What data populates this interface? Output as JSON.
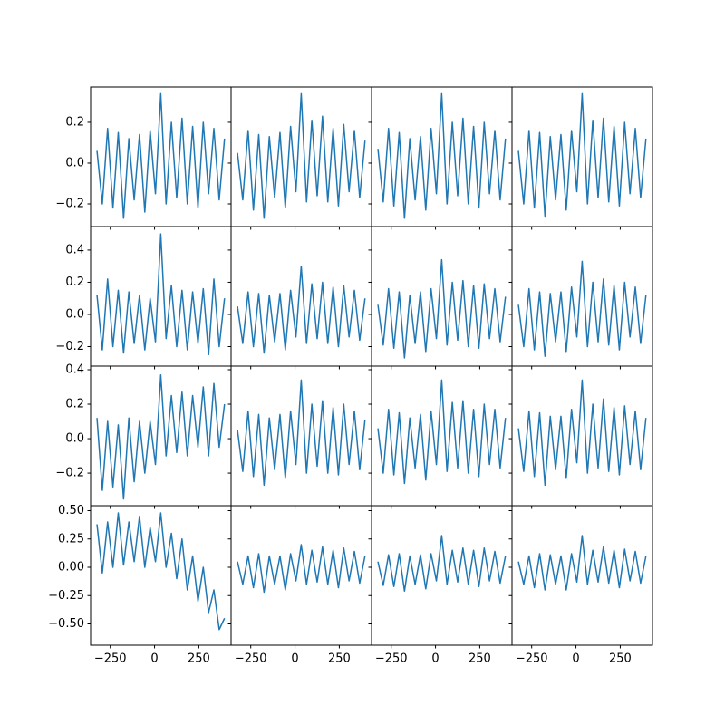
{
  "chart_data": [
    {
      "type": "line",
      "x": [
        -325,
        -295,
        -265,
        -235,
        -205,
        -175,
        -145,
        -115,
        -85,
        -55,
        -25,
        5,
        35,
        65,
        95,
        125,
        155,
        185,
        215,
        245,
        275,
        305,
        335,
        365,
        395
      ],
      "values": [
        0.06,
        -0.2,
        0.17,
        -0.22,
        0.15,
        -0.27,
        0.12,
        -0.18,
        0.14,
        -0.24,
        0.16,
        -0.15,
        0.34,
        -0.2,
        0.2,
        -0.17,
        0.22,
        -0.2,
        0.18,
        -0.22,
        0.2,
        -0.15,
        0.17,
        -0.18,
        0.12
      ],
      "color": "#1f77b4",
      "xlim": [
        -361,
        432
      ],
      "ylim": [
        -0.311,
        0.373
      ],
      "xticks": [
        -250,
        0,
        250
      ],
      "yticks": [
        {
          "value": -0.2,
          "label": "−0.2"
        },
        {
          "value": 0,
          "label": "0.0"
        },
        0.2
      ],
      "xtick_labels": false,
      "ytick_labels": true
    },
    {
      "type": "line",
      "x": [
        -325,
        -295,
        -265,
        -235,
        -205,
        -175,
        -145,
        -115,
        -85,
        -55,
        -25,
        5,
        35,
        65,
        95,
        125,
        155,
        185,
        215,
        245,
        275,
        305,
        335,
        365,
        395
      ],
      "values": [
        0.05,
        -0.18,
        0.16,
        -0.23,
        0.14,
        -0.27,
        0.13,
        -0.17,
        0.15,
        -0.22,
        0.18,
        -0.14,
        0.34,
        -0.19,
        0.21,
        -0.16,
        0.23,
        -0.19,
        0.17,
        -0.21,
        0.19,
        -0.14,
        0.16,
        -0.17,
        0.11
      ],
      "color": "#1f77b4",
      "xlim": [
        -361,
        432
      ],
      "ylim": [
        -0.311,
        0.373
      ],
      "xticks": [
        -250,
        0,
        250
      ],
      "yticks": [
        -0.2,
        0,
        0.2
      ],
      "xtick_labels": false,
      "ytick_labels": false
    },
    {
      "type": "line",
      "x": [
        -325,
        -295,
        -265,
        -235,
        -205,
        -175,
        -145,
        -115,
        -85,
        -55,
        -25,
        5,
        35,
        65,
        95,
        125,
        155,
        185,
        215,
        245,
        275,
        305,
        335,
        365,
        395
      ],
      "values": [
        0.07,
        -0.19,
        0.17,
        -0.21,
        0.15,
        -0.27,
        0.12,
        -0.18,
        0.13,
        -0.23,
        0.17,
        -0.15,
        0.34,
        -0.2,
        0.2,
        -0.16,
        0.22,
        -0.2,
        0.18,
        -0.22,
        0.2,
        -0.15,
        0.16,
        -0.18,
        0.12
      ],
      "color": "#1f77b4",
      "xlim": [
        -361,
        432
      ],
      "ylim": [
        -0.311,
        0.373
      ],
      "xticks": [
        -250,
        0,
        250
      ],
      "yticks": [
        -0.2,
        0,
        0.2
      ],
      "xtick_labels": false,
      "ytick_labels": false
    },
    {
      "type": "line",
      "x": [
        -325,
        -295,
        -265,
        -235,
        -205,
        -175,
        -145,
        -115,
        -85,
        -55,
        -25,
        5,
        35,
        65,
        95,
        125,
        155,
        185,
        215,
        245,
        275,
        305,
        335,
        365,
        395
      ],
      "values": [
        0.06,
        -0.2,
        0.16,
        -0.22,
        0.15,
        -0.26,
        0.13,
        -0.18,
        0.14,
        -0.23,
        0.16,
        -0.14,
        0.34,
        -0.2,
        0.21,
        -0.17,
        0.22,
        -0.19,
        0.18,
        -0.21,
        0.2,
        -0.15,
        0.17,
        -0.17,
        0.12
      ],
      "color": "#1f77b4",
      "xlim": [
        -361,
        432
      ],
      "ylim": [
        -0.311,
        0.373
      ],
      "xticks": [
        -250,
        0,
        250
      ],
      "yticks": [
        -0.2,
        0,
        0.2
      ],
      "xtick_labels": false,
      "ytick_labels": false
    },
    {
      "type": "line",
      "x": [
        -325,
        -295,
        -265,
        -235,
        -205,
        -175,
        -145,
        -115,
        -85,
        -55,
        -25,
        5,
        35,
        65,
        95,
        125,
        155,
        185,
        215,
        245,
        275,
        305,
        335,
        365,
        395
      ],
      "values": [
        0.12,
        -0.22,
        0.22,
        -0.2,
        0.15,
        -0.24,
        0.14,
        -0.18,
        0.12,
        -0.22,
        0.1,
        -0.17,
        0.5,
        -0.15,
        0.18,
        -0.2,
        0.15,
        -0.22,
        0.14,
        -0.18,
        0.16,
        -0.25,
        0.22,
        -0.2,
        0.1
      ],
      "color": "#1f77b4",
      "xlim": [
        -361,
        432
      ],
      "ylim": [
        -0.321,
        0.546
      ],
      "xticks": [
        -250,
        0,
        250
      ],
      "yticks": [
        {
          "value": -0.2,
          "label": "−0.2"
        },
        {
          "value": 0,
          "label": "0.0"
        },
        0.2,
        0.4
      ],
      "xtick_labels": false,
      "ytick_labels": true
    },
    {
      "type": "line",
      "x": [
        -325,
        -295,
        -265,
        -235,
        -205,
        -175,
        -145,
        -115,
        -85,
        -55,
        -25,
        5,
        35,
        65,
        95,
        125,
        155,
        185,
        215,
        245,
        275,
        305,
        335,
        365,
        395
      ],
      "values": [
        0.05,
        -0.18,
        0.14,
        -0.2,
        0.13,
        -0.24,
        0.12,
        -0.17,
        0.13,
        -0.22,
        0.15,
        -0.14,
        0.3,
        -0.18,
        0.19,
        -0.15,
        0.2,
        -0.18,
        0.17,
        -0.2,
        0.18,
        -0.14,
        0.15,
        -0.16,
        0.1
      ],
      "color": "#1f77b4",
      "xlim": [
        -361,
        432
      ],
      "ylim": [
        -0.321,
        0.546
      ],
      "xticks": [
        -250,
        0,
        250
      ],
      "yticks": [
        -0.2,
        0,
        0.2,
        0.4
      ],
      "xtick_labels": false,
      "ytick_labels": false
    },
    {
      "type": "line",
      "x": [
        -325,
        -295,
        -265,
        -235,
        -205,
        -175,
        -145,
        -115,
        -85,
        -55,
        -25,
        5,
        35,
        65,
        95,
        125,
        155,
        185,
        215,
        245,
        275,
        305,
        335,
        365,
        395
      ],
      "values": [
        0.06,
        -0.19,
        0.16,
        -0.21,
        0.14,
        -0.27,
        0.12,
        -0.18,
        0.14,
        -0.23,
        0.16,
        -0.15,
        0.34,
        -0.19,
        0.2,
        -0.16,
        0.21,
        -0.2,
        0.18,
        -0.21,
        0.19,
        -0.15,
        0.16,
        -0.17,
        0.11
      ],
      "color": "#1f77b4",
      "xlim": [
        -361,
        432
      ],
      "ylim": [
        -0.321,
        0.546
      ],
      "xticks": [
        -250,
        0,
        250
      ],
      "yticks": [
        -0.2,
        0,
        0.2,
        0.4
      ],
      "xtick_labels": false,
      "ytick_labels": false
    },
    {
      "type": "line",
      "x": [
        -325,
        -295,
        -265,
        -235,
        -205,
        -175,
        -145,
        -115,
        -85,
        -55,
        -25,
        5,
        35,
        65,
        95,
        125,
        155,
        185,
        215,
        245,
        275,
        305,
        335,
        365,
        395
      ],
      "values": [
        0.06,
        -0.2,
        0.16,
        -0.22,
        0.14,
        -0.26,
        0.13,
        -0.17,
        0.14,
        -0.23,
        0.17,
        -0.14,
        0.33,
        -0.2,
        0.2,
        -0.17,
        0.22,
        -0.19,
        0.18,
        -0.22,
        0.2,
        -0.14,
        0.17,
        -0.18,
        0.12
      ],
      "color": "#1f77b4",
      "xlim": [
        -361,
        432
      ],
      "ylim": [
        -0.321,
        0.546
      ],
      "xticks": [
        -250,
        0,
        250
      ],
      "yticks": [
        -0.2,
        0,
        0.2,
        0.4
      ],
      "xtick_labels": false,
      "ytick_labels": false
    },
    {
      "type": "line",
      "x": [
        -325,
        -295,
        -265,
        -235,
        -205,
        -175,
        -145,
        -115,
        -85,
        -55,
        -25,
        5,
        35,
        65,
        95,
        125,
        155,
        185,
        215,
        245,
        275,
        305,
        335,
        365,
        395
      ],
      "values": [
        0.12,
        -0.3,
        0.1,
        -0.28,
        0.08,
        -0.35,
        0.12,
        -0.25,
        0.1,
        -0.2,
        0.1,
        -0.15,
        0.37,
        -0.1,
        0.25,
        -0.08,
        0.27,
        -0.1,
        0.25,
        -0.05,
        0.3,
        -0.1,
        0.32,
        -0.05,
        0.2
      ],
      "color": "#1f77b4",
      "xlim": [
        -361,
        432
      ],
      "ylim": [
        -0.389,
        0.421
      ],
      "xticks": [
        -250,
        0,
        250
      ],
      "yticks": [
        {
          "value": -0.2,
          "label": "−0.2"
        },
        {
          "value": 0,
          "label": "0.0"
        },
        0.2,
        0.4
      ],
      "xtick_labels": false,
      "ytick_labels": true
    },
    {
      "type": "line",
      "x": [
        -325,
        -295,
        -265,
        -235,
        -205,
        -175,
        -145,
        -115,
        -85,
        -55,
        -25,
        5,
        35,
        65,
        95,
        125,
        155,
        185,
        215,
        245,
        275,
        305,
        335,
        365,
        395
      ],
      "values": [
        0.05,
        -0.19,
        0.16,
        -0.22,
        0.14,
        -0.27,
        0.12,
        -0.18,
        0.14,
        -0.23,
        0.16,
        -0.15,
        0.34,
        -0.2,
        0.2,
        -0.16,
        0.22,
        -0.2,
        0.18,
        -0.21,
        0.2,
        -0.15,
        0.16,
        -0.18,
        0.11
      ],
      "color": "#1f77b4",
      "xlim": [
        -361,
        432
      ],
      "ylim": [
        -0.389,
        0.421
      ],
      "xticks": [
        -250,
        0,
        250
      ],
      "yticks": [
        -0.2,
        0,
        0.2,
        0.4
      ],
      "xtick_labels": false,
      "ytick_labels": false
    },
    {
      "type": "line",
      "x": [
        -325,
        -295,
        -265,
        -235,
        -205,
        -175,
        -145,
        -115,
        -85,
        -55,
        -25,
        5,
        35,
        65,
        95,
        125,
        155,
        185,
        215,
        245,
        275,
        305,
        335,
        365,
        395
      ],
      "values": [
        0.06,
        -0.2,
        0.17,
        -0.21,
        0.15,
        -0.26,
        0.12,
        -0.17,
        0.14,
        -0.24,
        0.16,
        -0.15,
        0.34,
        -0.19,
        0.21,
        -0.17,
        0.22,
        -0.2,
        0.17,
        -0.22,
        0.2,
        -0.15,
        0.17,
        -0.17,
        0.12
      ],
      "color": "#1f77b4",
      "xlim": [
        -361,
        432
      ],
      "ylim": [
        -0.389,
        0.421
      ],
      "xticks": [
        -250,
        0,
        250
      ],
      "yticks": [
        -0.2,
        0,
        0.2,
        0.4
      ],
      "xtick_labels": false,
      "ytick_labels": false
    },
    {
      "type": "line",
      "x": [
        -325,
        -295,
        -265,
        -235,
        -205,
        -175,
        -145,
        -115,
        -85,
        -55,
        -25,
        5,
        35,
        65,
        95,
        125,
        155,
        185,
        215,
        245,
        275,
        305,
        335,
        365,
        395
      ],
      "values": [
        0.06,
        -0.19,
        0.16,
        -0.22,
        0.15,
        -0.27,
        0.13,
        -0.18,
        0.13,
        -0.23,
        0.17,
        -0.14,
        0.34,
        -0.2,
        0.2,
        -0.17,
        0.23,
        -0.19,
        0.18,
        -0.21,
        0.19,
        -0.15,
        0.16,
        -0.18,
        0.12
      ],
      "color": "#1f77b4",
      "xlim": [
        -361,
        432
      ],
      "ylim": [
        -0.389,
        0.421
      ],
      "xticks": [
        -250,
        0,
        250
      ],
      "yticks": [
        -0.2,
        0,
        0.2,
        0.4
      ],
      "xtick_labels": false,
      "ytick_labels": false
    },
    {
      "type": "line",
      "x": [
        -325,
        -295,
        -265,
        -235,
        -205,
        -175,
        -145,
        -115,
        -85,
        -55,
        -25,
        5,
        35,
        65,
        95,
        125,
        155,
        185,
        215,
        245,
        275,
        305,
        335,
        365,
        395
      ],
      "values": [
        0.38,
        -0.05,
        0.4,
        0,
        0.48,
        0.02,
        0.4,
        0.05,
        0.45,
        0,
        0.35,
        0.05,
        0.48,
        0,
        0.3,
        -0.1,
        0.25,
        -0.2,
        0.1,
        -0.3,
        0,
        -0.4,
        -0.2,
        -0.55,
        -0.45
      ],
      "color": "#1f77b4",
      "xlim": [
        -361,
        432
      ],
      "ylim": [
        -0.688,
        0.544
      ],
      "xticks": [
        {
          "value": -250,
          "label": "−250"
        },
        0,
        250
      ],
      "yticks": [
        {
          "value": -0.5,
          "label": "−0.50"
        },
        {
          "value": -0.25,
          "label": "−0.25"
        },
        {
          "value": 0,
          "label": "0.00"
        },
        0.25,
        {
          "value": 0.5,
          "label": "0.50"
        }
      ],
      "xtick_labels": true,
      "ytick_labels": true
    },
    {
      "type": "line",
      "x": [
        -325,
        -295,
        -265,
        -235,
        -205,
        -175,
        -145,
        -115,
        -85,
        -55,
        -25,
        5,
        35,
        65,
        95,
        125,
        155,
        185,
        215,
        245,
        275,
        305,
        335,
        365,
        395
      ],
      "values": [
        0.05,
        -0.15,
        0.1,
        -0.18,
        0.12,
        -0.22,
        0.1,
        -0.15,
        0.1,
        -0.2,
        0.12,
        -0.12,
        0.2,
        -0.15,
        0.15,
        -0.13,
        0.18,
        -0.15,
        0.15,
        -0.18,
        0.17,
        -0.12,
        0.14,
        -0.14,
        0.1
      ],
      "color": "#1f77b4",
      "xlim": [
        -361,
        432
      ],
      "ylim": [
        -0.688,
        0.544
      ],
      "xticks": [
        {
          "value": -250,
          "label": "−250"
        },
        0,
        250
      ],
      "yticks": [
        -0.5,
        -0.25,
        0,
        0.25,
        0.5
      ],
      "xtick_labels": true,
      "ytick_labels": false
    },
    {
      "type": "line",
      "x": [
        -325,
        -295,
        -265,
        -235,
        -205,
        -175,
        -145,
        -115,
        -85,
        -55,
        -25,
        5,
        35,
        65,
        95,
        125,
        155,
        185,
        215,
        245,
        275,
        305,
        335,
        365,
        395
      ],
      "values": [
        0.05,
        -0.16,
        0.11,
        -0.17,
        0.12,
        -0.21,
        0.1,
        -0.15,
        0.11,
        -0.19,
        0.12,
        -0.12,
        0.28,
        -0.15,
        0.15,
        -0.13,
        0.17,
        -0.15,
        0.15,
        -0.17,
        0.17,
        -0.12,
        0.14,
        -0.14,
        0.1
      ],
      "color": "#1f77b4",
      "xlim": [
        -361,
        432
      ],
      "ylim": [
        -0.688,
        0.544
      ],
      "xticks": [
        {
          "value": -250,
          "label": "−250"
        },
        0,
        250
      ],
      "yticks": [
        -0.5,
        -0.25,
        0,
        0.25,
        0.5
      ],
      "xtick_labels": true,
      "ytick_labels": false
    },
    {
      "type": "line",
      "x": [
        -325,
        -295,
        -265,
        -235,
        -205,
        -175,
        -145,
        -115,
        -85,
        -55,
        -25,
        5,
        35,
        65,
        95,
        125,
        155,
        185,
        215,
        245,
        275,
        305,
        335,
        365,
        395
      ],
      "values": [
        0.05,
        -0.15,
        0.1,
        -0.18,
        0.12,
        -0.2,
        0.11,
        -0.15,
        0.1,
        -0.2,
        0.12,
        -0.13,
        0.28,
        -0.15,
        0.15,
        -0.13,
        0.18,
        -0.14,
        0.15,
        -0.18,
        0.16,
        -0.12,
        0.14,
        -0.14,
        0.1
      ],
      "color": "#1f77b4",
      "xlim": [
        -361,
        432
      ],
      "ylim": [
        -0.688,
        0.544
      ],
      "xticks": [
        {
          "value": -250,
          "label": "−250"
        },
        0,
        250
      ],
      "yticks": [
        -0.5,
        -0.25,
        0,
        0.25,
        0.5
      ],
      "xtick_labels": true,
      "ytick_labels": false
    }
  ]
}
